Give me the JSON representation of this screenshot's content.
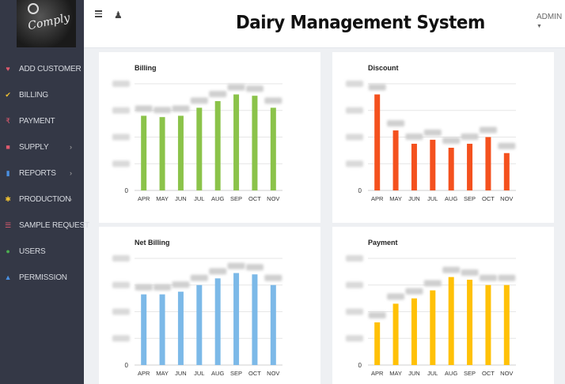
{
  "app": {
    "title": "Dairy Management System",
    "user_label": "ADMIN",
    "logo_text": "Comply"
  },
  "nav": {
    "items": [
      {
        "label": "ADD CUSTOMER",
        "icon": "user-plus-icon",
        "color": "#e05a6e",
        "has_submenu": false
      },
      {
        "label": "BILLING",
        "icon": "checkbox-icon",
        "color": "#f1c232",
        "has_submenu": false
      },
      {
        "label": "PAYMENT",
        "icon": "rupee-icon",
        "color": "#e05a6e",
        "has_submenu": false
      },
      {
        "label": "SUPPLY",
        "icon": "box-icon",
        "color": "#e05a6e",
        "has_submenu": true
      },
      {
        "label": "REPORTS",
        "icon": "document-icon",
        "color": "#4a90e2",
        "has_submenu": true
      },
      {
        "label": "PRODUCTION",
        "icon": "gears-icon",
        "color": "#f1c232",
        "has_submenu": true
      },
      {
        "label": "SAMPLE REQUEST",
        "icon": "list-icon",
        "color": "#e05a6e",
        "has_submenu": true
      },
      {
        "label": "USERS",
        "icon": "users-icon",
        "color": "#4caf50",
        "has_submenu": false
      },
      {
        "label": "PERMISSION",
        "icon": "lock-icon",
        "color": "#4a90e2",
        "has_submenu": false
      }
    ],
    "submenu_glyph": "›"
  },
  "chart_data": [
    {
      "type": "bar",
      "title": "Billing",
      "color": "#8bc34a",
      "categories": [
        "APR",
        "MAY",
        "JUN",
        "JUL",
        "AUG",
        "SEP",
        "OCT",
        "NOV"
      ],
      "values": [
        28,
        27.5,
        28,
        31,
        33.5,
        36,
        35.5,
        31
      ],
      "ylim": [
        0,
        40
      ],
      "y_ticks": [
        "0"
      ]
    },
    {
      "type": "bar",
      "title": "Discount",
      "color": "#f4511e",
      "categories": [
        "APR",
        "MAY",
        "JUN",
        "JUL",
        "AUG",
        "SEP",
        "OCT",
        "NOV"
      ],
      "values": [
        3.6,
        2.25,
        1.75,
        1.9,
        1.6,
        1.75,
        2.0,
        1.4
      ],
      "ylim": [
        0,
        4
      ],
      "y_ticks": [
        "0"
      ]
    },
    {
      "type": "bar",
      "title": "Net Billing",
      "color": "#7cb9e8",
      "categories": [
        "APR",
        "MAY",
        "JUN",
        "JUL",
        "AUG",
        "SEP",
        "OCT",
        "NOV"
      ],
      "values": [
        26.5,
        26.5,
        27.5,
        30,
        32.5,
        34.5,
        34,
        30
      ],
      "ylim": [
        0,
        40
      ],
      "y_ticks": [
        "0"
      ]
    },
    {
      "type": "bar",
      "title": "Payment",
      "color": "#ffc107",
      "categories": [
        "APR",
        "MAY",
        "JUN",
        "JUL",
        "AUG",
        "SEP",
        "OCT",
        "NOV"
      ],
      "values": [
        16,
        23,
        25,
        28,
        33,
        32,
        30,
        30
      ],
      "ylim": [
        0,
        40
      ],
      "y_ticks": [
        "0"
      ]
    }
  ]
}
